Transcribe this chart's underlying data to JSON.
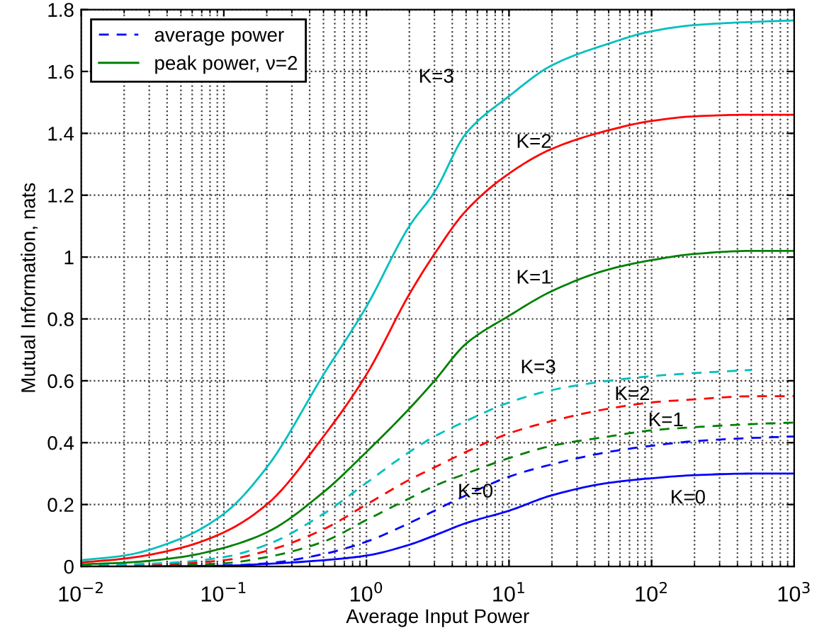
{
  "chart_data": {
    "type": "line",
    "xlabel": "Average Input Power",
    "ylabel": "Mutual Information, nats",
    "log": "x",
    "xlim": [
      0.01,
      1000
    ],
    "ylim": [
      0,
      1.8
    ],
    "xticks": [
      {
        "value": 0.01,
        "label": "10$^{−2}$"
      },
      {
        "value": 0.1,
        "label": "10$^{−1}$"
      },
      {
        "value": 1,
        "label": "10$^{0}$"
      },
      {
        "value": 10,
        "label": "10$^{1}$"
      },
      {
        "value": 100,
        "label": "10$^{2}$"
      },
      {
        "value": 1000,
        "label": "10$^{3}$"
      }
    ],
    "yticks": [
      0,
      0.2,
      0.4,
      0.6,
      0.8,
      1,
      1.2,
      1.4,
      1.6,
      1.8
    ],
    "grid": true,
    "legend": "top left",
    "x": [
      0.01,
      0.02,
      0.05,
      0.1,
      0.2,
      0.5,
      1,
      2,
      3,
      5,
      10,
      20,
      50,
      100,
      200,
      500,
      1000
    ],
    "series": [
      {
        "name": "average power",
        "color": "#0000ff",
        "line_style": "dashed",
        "values": [
          0,
          0.001,
          0.002,
          0.003,
          0.01,
          0.04,
          0.08,
          0.14,
          0.18,
          0.23,
          0.29,
          0.33,
          0.37,
          0.39,
          0.405,
          0.415,
          0.42
        ]
      },
      {
        "color": "#008000",
        "line_style": "dashed",
        "values": [
          0.001,
          0.002,
          0.005,
          0.01,
          0.03,
          0.08,
          0.15,
          0.22,
          0.26,
          0.3,
          0.35,
          0.39,
          0.42,
          0.44,
          0.45,
          0.46,
          0.465
        ]
      },
      {
        "color": "#ff0000",
        "line_style": "dashed",
        "values": [
          0.002,
          0.004,
          0.01,
          0.02,
          0.05,
          0.12,
          0.2,
          0.28,
          0.32,
          0.37,
          0.43,
          0.47,
          0.51,
          0.53,
          0.54,
          0.55,
          0.55
        ]
      },
      {
        "color": "#00bfbf",
        "line_style": "dashed",
        "values": [
          0.003,
          0.006,
          0.014,
          0.03,
          0.07,
          0.17,
          0.27,
          0.37,
          0.42,
          0.47,
          0.53,
          0.57,
          0.6,
          0.615,
          0.625,
          0.635,
          null
        ]
      },
      {
        "color": "#0000ff",
        "line_style": "solid",
        "values": [
          0,
          0,
          0.001,
          0.002,
          0.008,
          0.02,
          0.035,
          0.07,
          0.1,
          0.14,
          0.18,
          0.23,
          0.27,
          0.285,
          0.295,
          0.3,
          0.3
        ]
      },
      {
        "name": "peak power, ν=2",
        "color": "#008000",
        "line_style": "solid",
        "values": [
          0.007,
          0.012,
          0.03,
          0.06,
          0.11,
          0.24,
          0.37,
          0.51,
          0.6,
          0.72,
          0.81,
          0.89,
          0.96,
          0.99,
          1.01,
          1.02,
          1.02
        ]
      },
      {
        "color": "#ff0000",
        "line_style": "solid",
        "values": [
          0.013,
          0.025,
          0.06,
          0.11,
          0.2,
          0.42,
          0.62,
          0.88,
          1.01,
          1.15,
          1.27,
          1.35,
          1.41,
          1.44,
          1.455,
          1.46,
          1.46
        ]
      },
      {
        "color": "#00bfbf",
        "line_style": "solid",
        "values": [
          0.02,
          0.035,
          0.09,
          0.17,
          0.32,
          0.62,
          0.84,
          1.1,
          1.21,
          1.4,
          1.52,
          1.62,
          1.69,
          1.73,
          1.75,
          1.76,
          1.765
        ]
      }
    ],
    "annotations": [
      "K=3",
      "K=2",
      "K=1",
      "K=3",
      "K=2",
      "K=1",
      "K=0",
      "K=0"
    ]
  }
}
